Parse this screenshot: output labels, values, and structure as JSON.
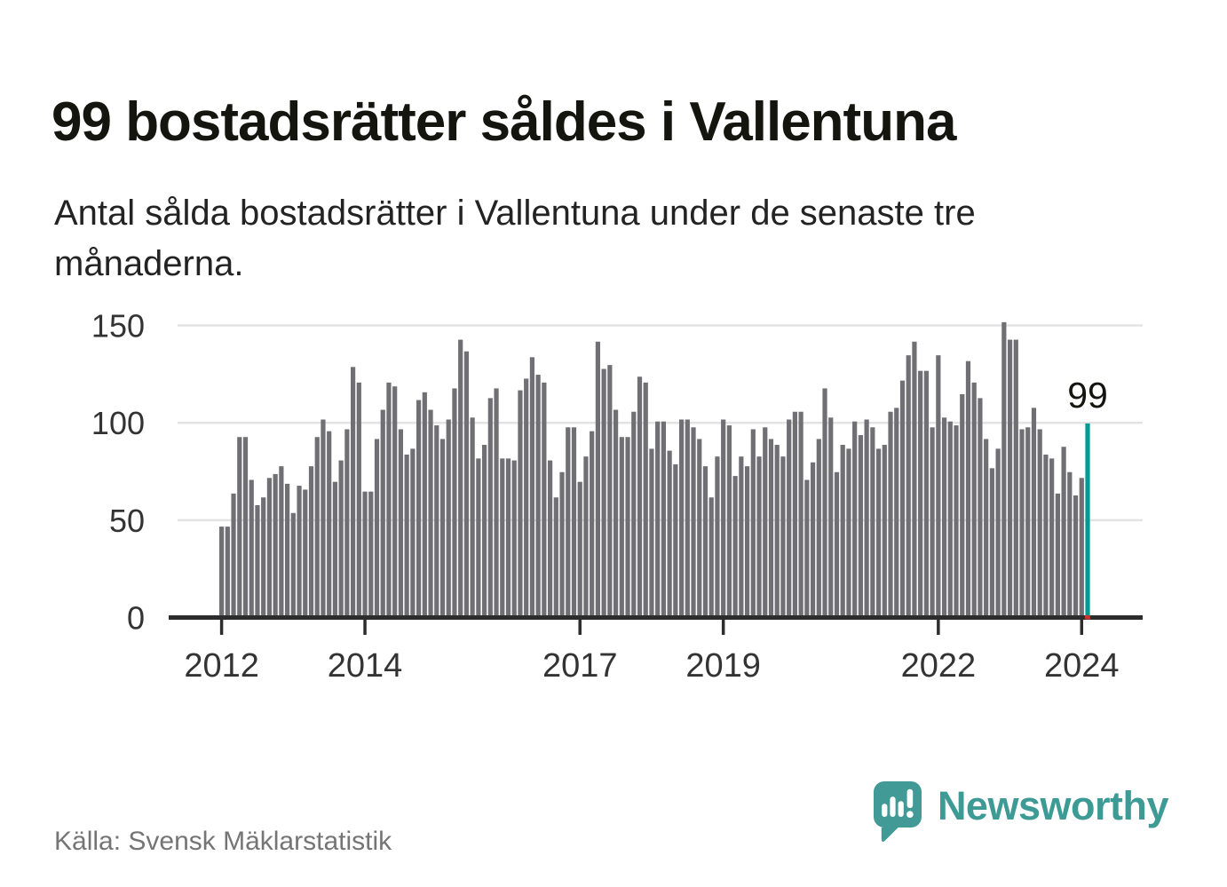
{
  "header": {
    "title": "99 bostadsrätter såldes i Vallentuna",
    "subtitle": "Antal sålda bostadsrätter i Vallentuna under de senaste tre månaderna."
  },
  "footer": {
    "source": "Källa: Svensk Mäklarstatistik",
    "brand": "Newsworthy"
  },
  "colors": {
    "bar": "#706F74",
    "accent": "#009B94",
    "grid": "#E3E3E3",
    "axis": "#2D2D2D",
    "highlight_tick": "#D0342C",
    "brand_teal": "#3D9A95",
    "text_dark": "#15150F",
    "text_axis": "#333333",
    "text_muted": "#757575"
  },
  "chart_data": {
    "type": "bar",
    "title": "99 bostadsrätter såldes i Vallentuna",
    "subtitle": "Antal sålda bostadsrätter i Vallentuna under de senaste tre månaderna.",
    "xlabel": "",
    "ylabel": "",
    "interval": "monthly",
    "x_start": "2012-01",
    "x_end": "2024-02",
    "ylim": [
      0,
      155
    ],
    "grid": true,
    "legend": false,
    "y_ticks": [
      0,
      50,
      100,
      150
    ],
    "x_tick_labels": [
      "2012",
      "2014",
      "2017",
      "2019",
      "2022",
      "2024"
    ],
    "x_tick_indices": [
      0,
      24,
      60,
      84,
      120,
      144
    ],
    "values": [
      46,
      46,
      63,
      92,
      92,
      70,
      57,
      61,
      71,
      73,
      77,
      68,
      53,
      67,
      65,
      77,
      92,
      101,
      95,
      69,
      80,
      96,
      128,
      120,
      64,
      64,
      91,
      106,
      120,
      118,
      96,
      83,
      86,
      111,
      115,
      106,
      98,
      91,
      101,
      117,
      142,
      136,
      102,
      81,
      88,
      112,
      117,
      81,
      81,
      80,
      116,
      122,
      133,
      124,
      120,
      80,
      61,
      74,
      97,
      97,
      69,
      82,
      95,
      141,
      127,
      129,
      106,
      92,
      92,
      105,
      123,
      120,
      86,
      100,
      100,
      85,
      78,
      101,
      101,
      97,
      91,
      77,
      61,
      82,
      101,
      98,
      72,
      82,
      77,
      96,
      82,
      97,
      91,
      88,
      82,
      101,
      105,
      105,
      70,
      79,
      91,
      117,
      102,
      74,
      88,
      86,
      100,
      93,
      101,
      97,
      86,
      88,
      105,
      107,
      121,
      134,
      141,
      126,
      126,
      97,
      134,
      102,
      100,
      98,
      114,
      131,
      120,
      112,
      91,
      76,
      86,
      151,
      142,
      142,
      96,
      97,
      107,
      96,
      83,
      81,
      63,
      87,
      74,
      62,
      71,
      99
    ],
    "highlight": {
      "index": 145,
      "value": 99,
      "label": "99",
      "color": "#009B94"
    },
    "bar_color": "#706F74"
  }
}
